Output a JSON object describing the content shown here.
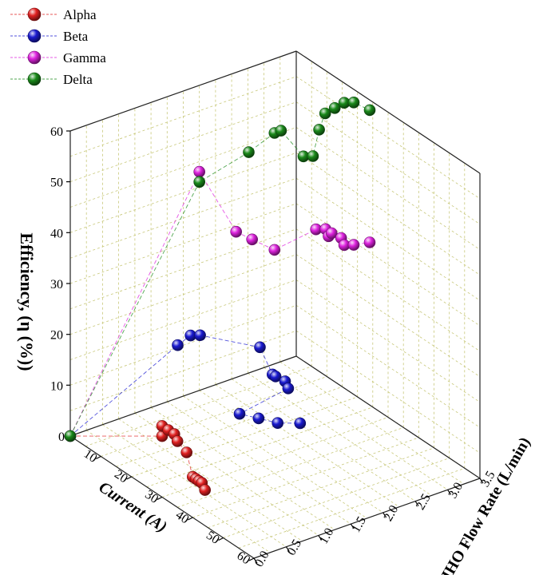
{
  "chart_data": {
    "type": "scatter3d",
    "title": "",
    "xlabel": "Current (A)",
    "ylabel": "HHO Flow Rate (L/min)",
    "zlabel": "Efficiency, (η (%))",
    "xlim": [
      0,
      60
    ],
    "ylim": [
      0,
      3.5
    ],
    "zlim": [
      0,
      60
    ],
    "x_ticks": [
      "10",
      "20",
      "30",
      "40",
      "50",
      "60"
    ],
    "y_ticks": [
      "0.0",
      "0.5",
      "1.0",
      "1.5",
      "2.0",
      "2.5",
      "3.0",
      "3.5"
    ],
    "z_ticks": [
      "10",
      "20",
      "30",
      "40",
      "50",
      "60"
    ],
    "origin_label": "0",
    "grid": true,
    "legend": "top-left",
    "series": [
      {
        "name": "Alpha",
        "color": "#e02020",
        "points": [
          [
            0,
            0,
            0
          ],
          [
            30,
            0,
            12
          ],
          [
            30,
            0,
            14
          ],
          [
            32,
            0,
            14
          ],
          [
            34,
            0,
            14
          ],
          [
            35,
            0,
            13
          ],
          [
            38,
            0,
            12
          ],
          [
            40,
            0,
            8
          ],
          [
            41,
            0,
            8
          ],
          [
            42,
            0,
            8
          ],
          [
            43,
            0,
            8
          ],
          [
            44,
            0,
            7
          ]
        ]
      },
      {
        "name": "Beta",
        "color": "#1a1ad0",
        "points": [
          [
            0,
            0,
            0
          ],
          [
            14,
            1.0,
            19
          ],
          [
            14,
            1.2,
            20
          ],
          [
            15,
            1.3,
            20
          ],
          [
            24,
            1.8,
            19
          ],
          [
            26,
            1.9,
            14
          ],
          [
            27,
            1.9,
            14
          ],
          [
            28,
            2.0,
            13
          ],
          [
            29,
            2.0,
            12
          ],
          [
            30,
            1.2,
            11
          ],
          [
            32,
            1.4,
            10
          ],
          [
            34,
            1.6,
            9
          ],
          [
            35,
            1.9,
            8
          ]
        ]
      },
      {
        "name": "Gamma",
        "color": "#dd22dd",
        "points": [
          [
            0,
            0,
            0
          ],
          [
            0,
            2.0,
            43
          ],
          [
            12,
            2.0,
            36
          ],
          [
            13,
            2.2,
            34
          ],
          [
            14,
            2.5,
            31
          ],
          [
            17,
            3.0,
            34
          ],
          [
            18,
            3.1,
            34
          ],
          [
            19,
            3.1,
            33
          ],
          [
            20,
            3.1,
            34
          ],
          [
            21,
            3.2,
            33
          ],
          [
            22,
            3.2,
            32
          ],
          [
            23,
            3.3,
            32
          ],
          [
            24,
            3.5,
            32
          ]
        ]
      },
      {
        "name": "Delta",
        "color": "#1a8a1a",
        "points": [
          [
            0,
            0,
            0
          ],
          [
            0,
            2.0,
            41
          ],
          [
            14,
            2.1,
            52
          ],
          [
            14,
            2.5,
            54
          ],
          [
            14,
            2.6,
            54
          ],
          [
            15,
            2.9,
            48
          ],
          [
            16,
            3.0,
            48
          ],
          [
            18,
            3.0,
            54
          ],
          [
            20,
            3.0,
            58
          ],
          [
            21,
            3.1,
            59
          ],
          [
            22,
            3.2,
            60
          ],
          [
            23,
            3.3,
            60
          ],
          [
            24,
            3.5,
            58
          ]
        ]
      }
    ]
  }
}
